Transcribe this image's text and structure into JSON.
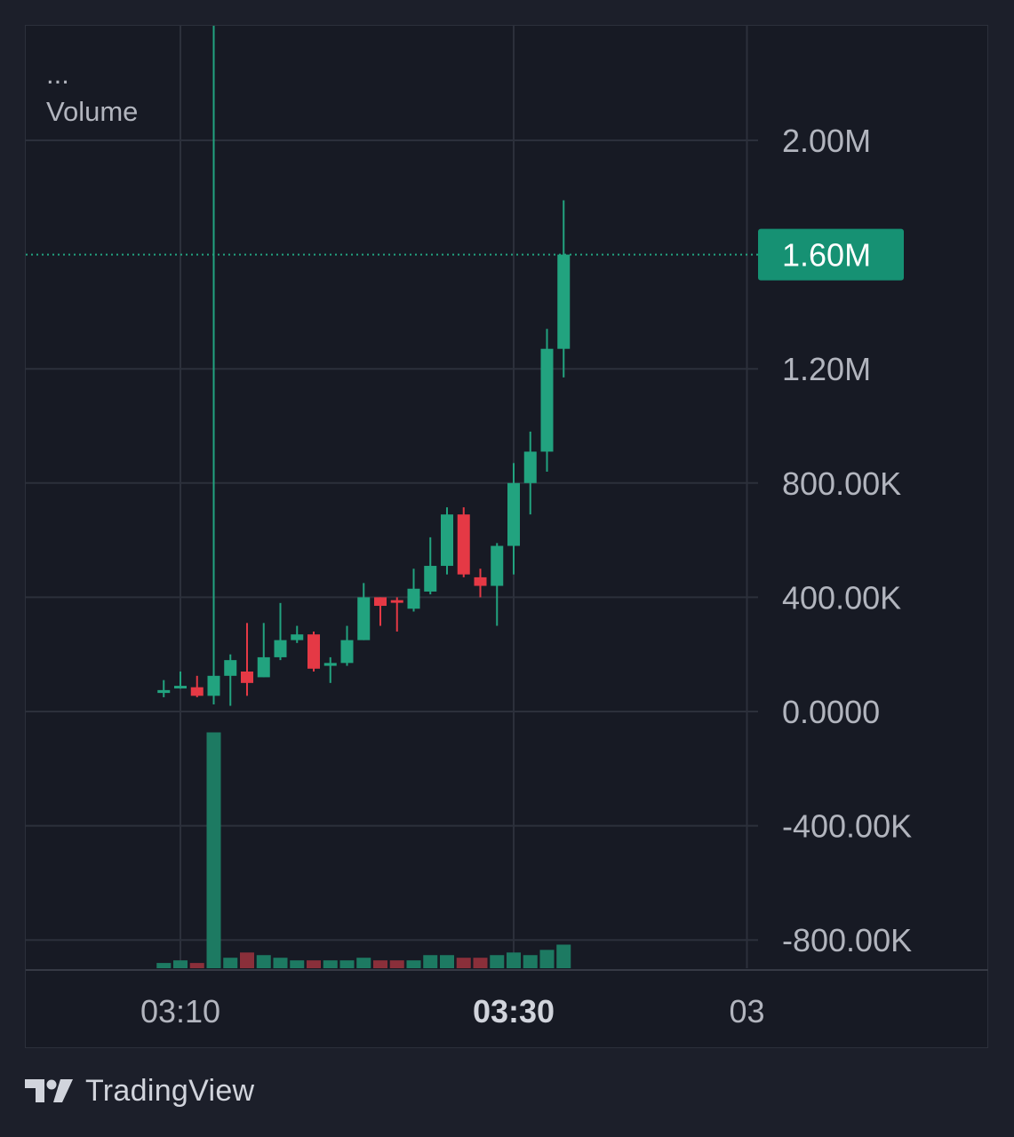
{
  "pane": {
    "menu_dots": "...",
    "indicator_label": "Volume"
  },
  "branding": {
    "name": "TradingView",
    "logo_icon": "tradingview-logo-icon"
  },
  "colors": {
    "background": "#1c1f2a",
    "up": "#22a37f",
    "down": "#e53945",
    "up_volume": "#1d7a62",
    "down_volume": "#8a2f3a",
    "price_tag": "#169173",
    "grid": "#2c303b",
    "axis_text": "#b2b5be"
  },
  "chart_data": {
    "type": "candlestick",
    "y_axis": {
      "ticks": [
        2000000,
        1200000,
        800000,
        400000,
        0,
        -400000,
        -800000
      ],
      "tick_labels": [
        "2.00M",
        "1.20M",
        "800.00K",
        "400.00K",
        "0.0000",
        "-400.00K",
        "-800.00K"
      ]
    },
    "x_axis": {
      "tick_labels": [
        {
          "label": "03:10",
          "minute": 10,
          "bold": false
        },
        {
          "label": "03:30",
          "minute": 30,
          "bold": true
        },
        {
          "label": "03",
          "minute": 44,
          "bold": false
        }
      ]
    },
    "last_price": {
      "label": "1.60M",
      "value": 1600000
    },
    "candles": [
      {
        "t": 9,
        "o": 65000,
        "h": 110000,
        "l": 50000,
        "c": 75000,
        "v": 1
      },
      {
        "t": 10,
        "o": 85000,
        "h": 140000,
        "l": 80000,
        "c": 90000,
        "v": 1.5
      },
      {
        "t": 11,
        "o": 85000,
        "h": 125000,
        "l": 50000,
        "c": 55000,
        "v": 1
      },
      {
        "t": 12,
        "o": 55000,
        "h": 5600000,
        "l": 25000,
        "c": 125000,
        "v": 45
      },
      {
        "t": 13,
        "o": 125000,
        "h": 200000,
        "l": 20000,
        "c": 180000,
        "v": 2
      },
      {
        "t": 14,
        "o": 140000,
        "h": 310000,
        "l": 55000,
        "c": 100000,
        "v": 3
      },
      {
        "t": 15,
        "o": 120000,
        "h": 310000,
        "l": 120000,
        "c": 190000,
        "v": 2.5
      },
      {
        "t": 16,
        "o": 190000,
        "h": 380000,
        "l": 180000,
        "c": 250000,
        "v": 2
      },
      {
        "t": 17,
        "o": 250000,
        "h": 300000,
        "l": 240000,
        "c": 270000,
        "v": 1.5
      },
      {
        "t": 18,
        "o": 270000,
        "h": 280000,
        "l": 140000,
        "c": 150000,
        "v": 1.5
      },
      {
        "t": 19,
        "o": 160000,
        "h": 190000,
        "l": 100000,
        "c": 170000,
        "v": 1.5
      },
      {
        "t": 20,
        "o": 170000,
        "h": 300000,
        "l": 160000,
        "c": 250000,
        "v": 1.5
      },
      {
        "t": 21,
        "o": 250000,
        "h": 450000,
        "l": 250000,
        "c": 400000,
        "v": 2
      },
      {
        "t": 22,
        "o": 400000,
        "h": 400000,
        "l": 300000,
        "c": 370000,
        "v": 1.5
      },
      {
        "t": 23,
        "o": 390000,
        "h": 400000,
        "l": 280000,
        "c": 385000,
        "v": 1.5
      },
      {
        "t": 24,
        "o": 360000,
        "h": 500000,
        "l": 350000,
        "c": 430000,
        "v": 1.5
      },
      {
        "t": 25,
        "o": 420000,
        "h": 610000,
        "l": 410000,
        "c": 510000,
        "v": 2.5
      },
      {
        "t": 26,
        "o": 510000,
        "h": 715000,
        "l": 480000,
        "c": 690000,
        "v": 2.5
      },
      {
        "t": 27,
        "o": 690000,
        "h": 715000,
        "l": 470000,
        "c": 480000,
        "v": 2
      },
      {
        "t": 28,
        "o": 470000,
        "h": 500000,
        "l": 400000,
        "c": 440000,
        "v": 2
      },
      {
        "t": 29,
        "o": 440000,
        "h": 590000,
        "l": 300000,
        "c": 580000,
        "v": 2.5
      },
      {
        "t": 30,
        "o": 580000,
        "h": 870000,
        "l": 480000,
        "c": 800000,
        "v": 3
      },
      {
        "t": 31,
        "o": 800000,
        "h": 980000,
        "l": 690000,
        "c": 910000,
        "v": 2.5
      },
      {
        "t": 32,
        "o": 910000,
        "h": 1340000,
        "l": 840000,
        "c": 1270000,
        "v": 3.5
      },
      {
        "t": 33,
        "o": 1270000,
        "h": 1790000,
        "l": 1170000,
        "c": 1600000,
        "v": 4.5
      }
    ]
  }
}
